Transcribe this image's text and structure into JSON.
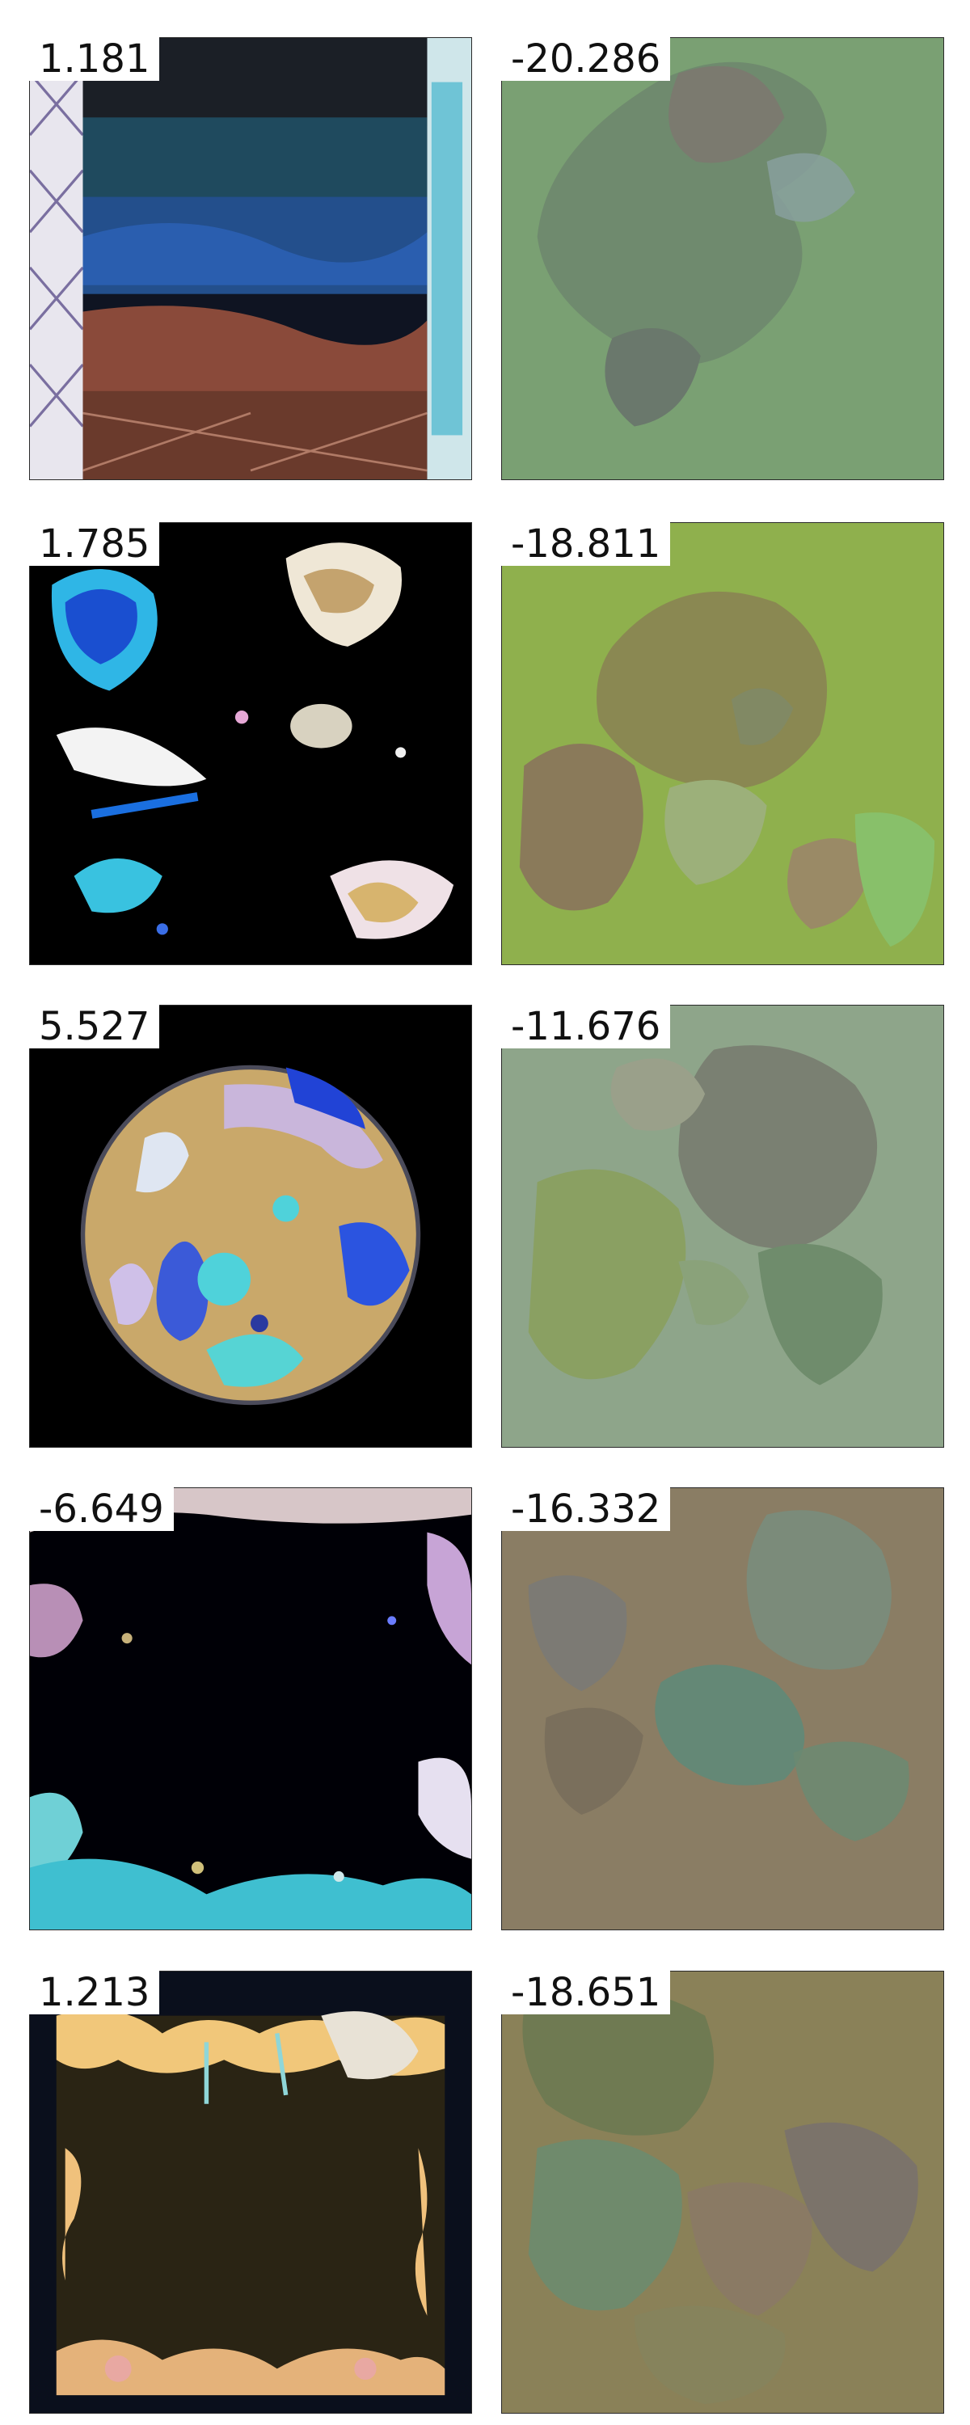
{
  "scores": {
    "row1_left": "1.181",
    "row1_right": "-20.286",
    "row2_left": "1.785",
    "row2_right": "-18.811",
    "row3_left": "5.527",
    "row3_right": "-11.676",
    "row4_left": "-6.649",
    "row4_right": "-16.332",
    "row5_left": "1.213",
    "row5_right": "-18.651"
  },
  "colors": {
    "r1_right_bg": "#7aa073",
    "r2_right_bg": "#8fb04d",
    "r3_right_bg": "#8ea58a",
    "r4_right_bg": "#8a7d64",
    "r5_right_bg": "#8a8158"
  }
}
